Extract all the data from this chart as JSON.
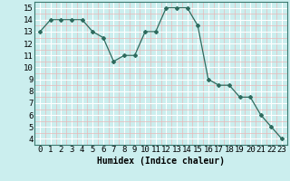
{
  "x": [
    0,
    1,
    2,
    3,
    4,
    5,
    6,
    7,
    8,
    9,
    10,
    11,
    12,
    13,
    14,
    15,
    16,
    17,
    18,
    19,
    20,
    21,
    22,
    23
  ],
  "y": [
    13,
    14,
    14,
    14,
    14,
    13,
    12.5,
    10.5,
    11,
    11,
    13,
    13,
    15,
    15,
    15,
    13.5,
    9,
    8.5,
    8.5,
    7.5,
    7.5,
    6,
    5,
    4
  ],
  "line_color": "#2e6b5e",
  "marker": "D",
  "marker_size": 2,
  "bg_color": "#cbeeee",
  "grid_color_major": "#ffffff",
  "grid_color_minor": "#e8b8b8",
  "xlabel": "Humidex (Indice chaleur)",
  "xlim": [
    -0.5,
    23.5
  ],
  "ylim": [
    3.5,
    15.5
  ],
  "yticks": [
    4,
    5,
    6,
    7,
    8,
    9,
    10,
    11,
    12,
    13,
    14,
    15
  ],
  "xticks": [
    0,
    1,
    2,
    3,
    4,
    5,
    6,
    7,
    8,
    9,
    10,
    11,
    12,
    13,
    14,
    15,
    16,
    17,
    18,
    19,
    20,
    21,
    22,
    23
  ],
  "xlabel_fontsize": 7,
  "tick_fontsize": 6.5
}
